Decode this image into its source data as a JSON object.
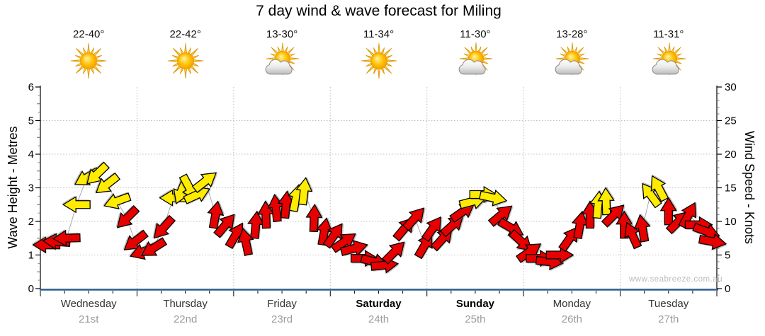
{
  "title": "7 day wind & wave forecast for Miling",
  "watermark": "www.seabreeze.com.au",
  "axes": {
    "left": {
      "title": "Wave Height - Metres",
      "ticks": [
        0,
        1,
        2,
        3,
        4,
        5,
        6
      ],
      "max": 6
    },
    "right": {
      "title": "Wind Speed - Knots",
      "ticks": [
        0,
        5,
        10,
        15,
        20,
        25,
        30
      ],
      "max": 30
    }
  },
  "days": [
    {
      "name": "Wednesday",
      "date": "21st",
      "temp": "22-40°",
      "icon": "sunny",
      "weekend": false
    },
    {
      "name": "Thursday",
      "date": "22nd",
      "temp": "22-42°",
      "icon": "sunny",
      "weekend": false
    },
    {
      "name": "Friday",
      "date": "23rd",
      "temp": "13-30°",
      "icon": "partly-cloudy",
      "weekend": false
    },
    {
      "name": "Saturday",
      "date": "24th",
      "temp": "11-34°",
      "icon": "sunny",
      "weekend": true
    },
    {
      "name": "Sunday",
      "date": "25th",
      "temp": "11-30°",
      "icon": "partly-cloudy",
      "weekend": true
    },
    {
      "name": "Monday",
      "date": "26th",
      "temp": "13-28°",
      "icon": "partly-cloudy",
      "weekend": false
    },
    {
      "name": "Tuesday",
      "date": "27th",
      "temp": "11-31°",
      "icon": "partly-cloudy",
      "weekend": false
    }
  ],
  "colors": {
    "arrow_red": "#e60000",
    "arrow_yellow": "#ffec00",
    "arrow_outline": "#000000",
    "axis_bottom": "#2b5d8e",
    "grid": "#bdbdbd",
    "connector": "#9e9e9e",
    "date_text": "#9b9b9b",
    "watermark": "#bcbcbc"
  },
  "chart_data": {
    "type": "scatter",
    "marker": "directional-wind-arrow",
    "title": "7 day wind & wave forecast for Miling",
    "xlabel": "days (Wednesday 21st - Tuesday 27th, 3-hourly points)",
    "ylabel_left": "Wave Height - Metres",
    "ylabel_right": "Wind Speed - Knots",
    "xlim_hours": [
      0,
      168
    ],
    "ylim_knots": [
      0,
      30
    ],
    "ylim_metres": [
      0,
      6
    ],
    "grid": "dotted horizontal each metre (1-5) and vertical at day boundaries",
    "legend": "arrow colour = wind strength (red lighter, yellow stronger); arrow rotation = wind direction (0 deg points right, -90 points up, 180 points left)",
    "columns": [
      "hours_from_start",
      "knots",
      "angle_deg_cw_from_right",
      "color(r=red,y=yellow)"
    ],
    "points": [
      [
        1.5,
        6.5,
        180,
        "r"
      ],
      [
        4,
        7,
        184,
        "r"
      ],
      [
        6.5,
        7.5,
        178,
        "r"
      ],
      [
        9,
        12.5,
        180,
        "y"
      ],
      [
        11.5,
        16.5,
        150,
        "y"
      ],
      [
        14,
        17,
        136,
        "y"
      ],
      [
        16.5,
        15.5,
        142,
        "y"
      ],
      [
        19,
        13,
        160,
        "y"
      ],
      [
        21.5,
        10.5,
        135,
        "r"
      ],
      [
        23.5,
        7,
        142,
        "r"
      ],
      [
        25.5,
        5.5,
        160,
        "r"
      ],
      [
        28,
        6,
        148,
        "r"
      ],
      [
        30.5,
        9,
        132,
        "r"
      ],
      [
        33,
        13.5,
        180,
        "y"
      ],
      [
        35,
        14.5,
        112,
        "y"
      ],
      [
        37,
        15,
        62,
        "y"
      ],
      [
        39,
        14,
        -25,
        "y"
      ],
      [
        41,
        16,
        -38,
        "y"
      ],
      [
        43.5,
        11,
        -80,
        "r"
      ],
      [
        46,
        9.5,
        -50,
        "r"
      ],
      [
        48.5,
        8,
        -60,
        "r"
      ],
      [
        51,
        7,
        -102,
        "r"
      ],
      [
        53.5,
        9.5,
        -85,
        "r"
      ],
      [
        56,
        11,
        -92,
        "r"
      ],
      [
        58.5,
        12,
        -96,
        "r"
      ],
      [
        61,
        12.5,
        -85,
        "r"
      ],
      [
        63.5,
        13.5,
        -78,
        "y"
      ],
      [
        65.5,
        14.5,
        -83,
        "y"
      ],
      [
        68,
        10.5,
        -88,
        "r"
      ],
      [
        70.5,
        8.5,
        -80,
        "r"
      ],
      [
        73,
        8,
        -55,
        "r"
      ],
      [
        75.5,
        7,
        -35,
        "r"
      ],
      [
        78,
        6,
        -15,
        "r"
      ],
      [
        80.5,
        4.5,
        0,
        "r"
      ],
      [
        83,
        4,
        14,
        "r"
      ],
      [
        85.5,
        3.5,
        -6,
        "r"
      ],
      [
        88,
        5.5,
        -45,
        "r"
      ],
      [
        90.5,
        9,
        -50,
        "r"
      ],
      [
        93,
        10.5,
        -48,
        "r"
      ],
      [
        95.5,
        6.5,
        -60,
        "r"
      ],
      [
        97.5,
        9,
        -55,
        "r"
      ],
      [
        100,
        7.5,
        -48,
        "r"
      ],
      [
        102.5,
        9.5,
        -42,
        "r"
      ],
      [
        105,
        11.5,
        -35,
        "r"
      ],
      [
        107.5,
        13,
        -15,
        "y"
      ],
      [
        110,
        14,
        0,
        "y"
      ],
      [
        112.5,
        13.5,
        12,
        "y"
      ],
      [
        114.5,
        11,
        -40,
        "r"
      ],
      [
        117,
        9,
        30,
        "r"
      ],
      [
        119.5,
        7,
        42,
        "r"
      ],
      [
        121.5,
        5.5,
        -35,
        "r"
      ],
      [
        124,
        4.5,
        0,
        "r"
      ],
      [
        126.5,
        4,
        6,
        "r"
      ],
      [
        129,
        5,
        0,
        "r"
      ],
      [
        131.5,
        7.5,
        -55,
        "r"
      ],
      [
        134,
        9.5,
        -80,
        "r"
      ],
      [
        136.5,
        11,
        -90,
        "r"
      ],
      [
        138.5,
        12.5,
        -85,
        "y"
      ],
      [
        140.5,
        13,
        -92,
        "y"
      ],
      [
        142.5,
        11,
        -45,
        "r"
      ],
      [
        145,
        9.5,
        -90,
        "r"
      ],
      [
        147,
        8,
        -114,
        "r"
      ],
      [
        149.5,
        9,
        -100,
        "r"
      ],
      [
        151.5,
        14,
        -126,
        "y"
      ],
      [
        153.5,
        15,
        -118,
        "y"
      ],
      [
        156,
        11.5,
        -90,
        "r"
      ],
      [
        158.5,
        10,
        -45,
        "r"
      ],
      [
        161,
        11,
        -62,
        "r"
      ],
      [
        163.5,
        9.5,
        0,
        "r"
      ],
      [
        165.5,
        8.5,
        20,
        "r"
      ],
      [
        167,
        7,
        10,
        "r"
      ]
    ]
  }
}
